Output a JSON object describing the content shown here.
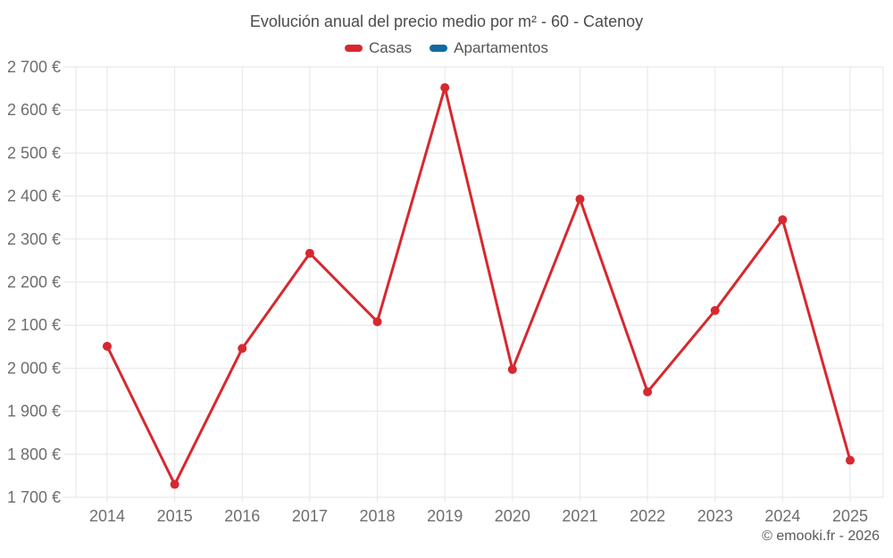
{
  "header": {
    "title": "Evolución anual del precio medio por m² - 60 - Catenoy"
  },
  "legend": {
    "items": [
      {
        "label": "Casas",
        "color": "#d7282f"
      },
      {
        "label": "Apartamentos",
        "color": "#126a9f"
      }
    ]
  },
  "footer": {
    "credit": "© emooki.fr - 2026"
  },
  "chart_data": {
    "type": "line",
    "title": "Evolución anual del precio medio por m² - 60 - Catenoy",
    "categories": [
      "2014",
      "2015",
      "2016",
      "2017",
      "2018",
      "2019",
      "2020",
      "2021",
      "2022",
      "2023",
      "2024",
      "2025"
    ],
    "series": [
      {
        "name": "Casas",
        "color": "#d7282f",
        "values": [
          2051,
          1730,
          2046,
          2267,
          2108,
          2652,
          1997,
          2393,
          1945,
          2134,
          2345,
          1786
        ]
      },
      {
        "name": "Apartamentos",
        "color": "#126a9f",
        "values": []
      }
    ],
    "xlabel": "",
    "ylabel": "",
    "ylim": [
      1700,
      2700
    ],
    "ytick_step": 100,
    "ytick_labels": [
      "1 700 €",
      "1 800 €",
      "1 900 €",
      "2 000 €",
      "2 100 €",
      "2 200 €",
      "2 300 €",
      "2 400 €",
      "2 500 €",
      "2 600 €",
      "2 700 €"
    ],
    "grid": true,
    "legend_position": "top",
    "point_style": "circle",
    "grid_color": "#e6e6e6",
    "tick_color": "#6e6e6e"
  }
}
